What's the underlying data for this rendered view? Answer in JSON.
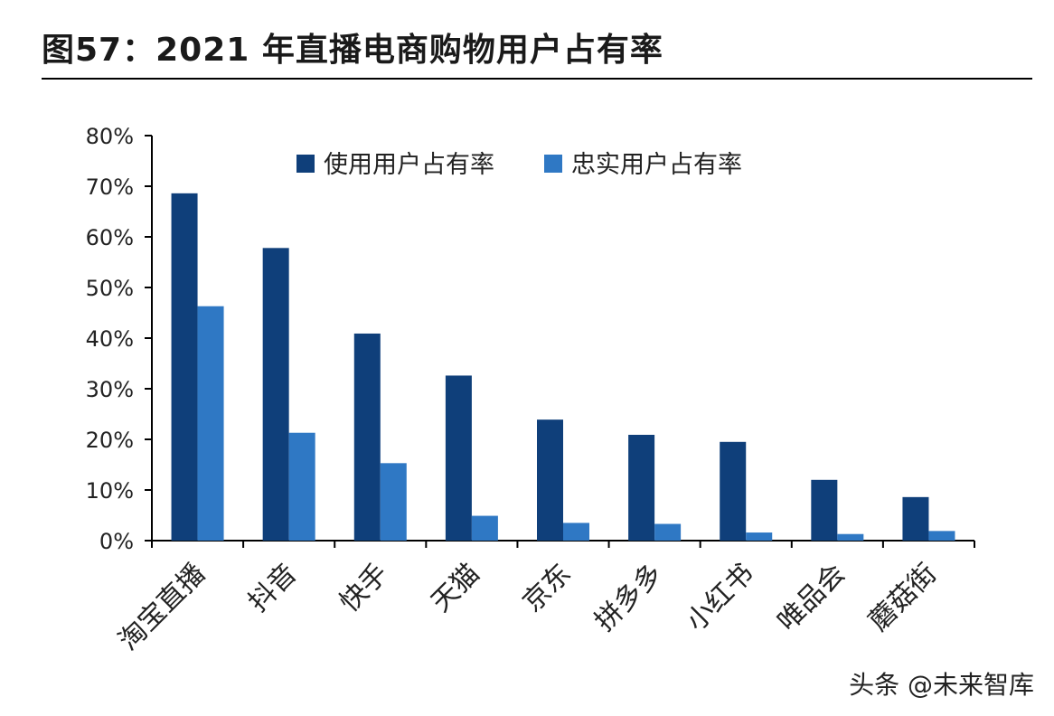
{
  "figure_label": "图57：2021 年直播电商购物用户占有率",
  "watermark": "头条 @未来智库",
  "colors": {
    "series_primary": "#0f3f7a",
    "series_secondary": "#2f78c4",
    "axis": "#000000",
    "text": "#222222"
  },
  "chart_data": {
    "type": "bar",
    "title": "",
    "xlabel": "",
    "ylabel": "",
    "ylim": [
      0,
      80
    ],
    "yticks": [
      "0%",
      "10%",
      "20%",
      "30%",
      "40%",
      "50%",
      "60%",
      "70%",
      "80%"
    ],
    "grid": false,
    "legend_position": "top-center",
    "categories": [
      "淘宝直播",
      "抖音",
      "快手",
      "天猫",
      "京东",
      "拼多多",
      "小红书",
      "唯品会",
      "蘑菇街"
    ],
    "series": [
      {
        "name": "使用用户占有率",
        "color": "#0f3f7a",
        "values": [
          68.6,
          57.8,
          40.9,
          32.6,
          23.9,
          20.9,
          19.5,
          12.0,
          8.6
        ]
      },
      {
        "name": "忠实用户占有率",
        "color": "#2f78c4",
        "values": [
          46.3,
          21.3,
          15.3,
          4.9,
          3.5,
          3.3,
          1.6,
          1.3,
          1.9
        ]
      }
    ]
  }
}
